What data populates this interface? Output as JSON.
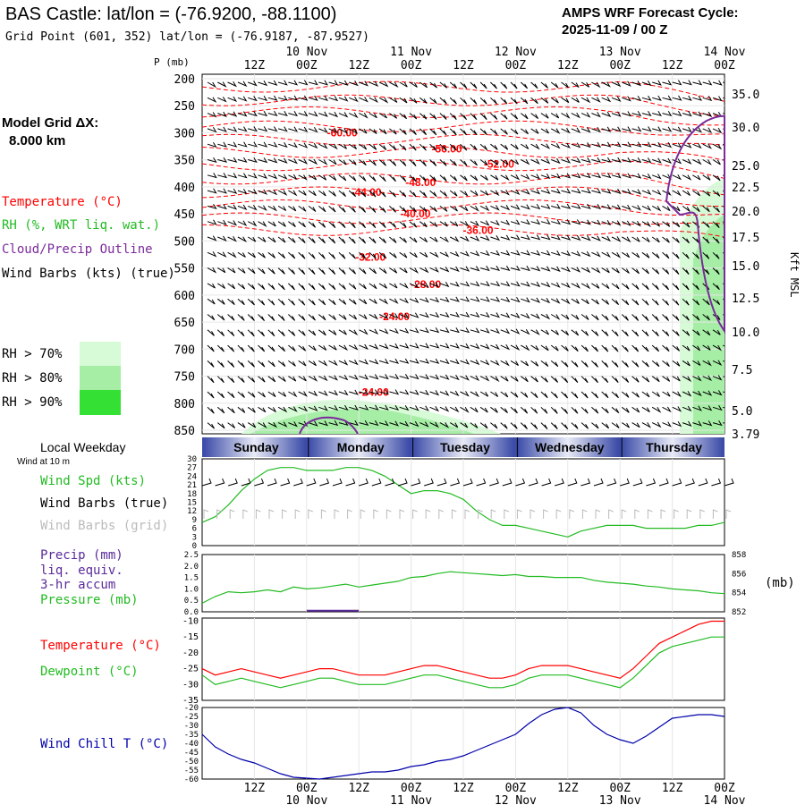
{
  "header": {
    "title": "BAS Castle:  lat/lon = (-76.9200, -88.1100)",
    "grid_point": "Grid Point (601, 352) lat/lon = (-76.9187, -87.9527)",
    "cycle_line1": "AMPS WRF Forecast Cycle:",
    "cycle_line2": "2025-11-09 / 00  Z"
  },
  "time_axis": {
    "top_hours": [
      "12Z",
      "00Z",
      "12Z",
      "00Z",
      "12Z",
      "00Z",
      "12Z",
      "00Z",
      "12Z",
      "00Z"
    ],
    "dates": [
      "10 Nov",
      "11 Nov",
      "12 Nov",
      "13 Nov",
      "14 Nov"
    ]
  },
  "left_panel": {
    "model_grid_label": "Model Grid ΔX:",
    "model_grid_value": "8.000 km",
    "legend_temperature": "Temperature (°C)",
    "legend_rh": "RH (%, WRT liq. wat.)",
    "legend_cloud": "Cloud/Precip Outline",
    "legend_wind": "Wind Barbs (kts) (true)",
    "rh_70": "RH > 70%",
    "rh_80": "RH > 80%",
    "rh_90": "RH > 90%"
  },
  "colors": {
    "temperature": "#ff0000",
    "rh": "#22bb22",
    "cloud": "#7a2a9a",
    "rh70": "#d6fbd6",
    "rh80": "#a6eea6",
    "rh90": "#34e034",
    "wind_chill": "#0000aa",
    "precip": "#5a2a9a"
  },
  "weekday_band": {
    "title": "Local Weekday",
    "days": [
      "Sunday",
      "Monday",
      "Tuesday",
      "Wednesday",
      "Thursday"
    ]
  },
  "panel_labels": {
    "wind_at": "Wind at 10 m",
    "wind_spd": "Wind Spd (kts)",
    "wind_barbs_true": "Wind Barbs (true)",
    "wind_barbs_grid": "Wind Barbs (grid)",
    "precip": "Precip (mm)",
    "precip2": "liq. equiv.",
    "precip3": "3-hr accum",
    "pressure": "Pressure (mb)",
    "pressure_unit": "(mb)",
    "temperature": "Temperature (°C)",
    "dewpoint": "Dewpoint (°C)",
    "wind_chill": "Wind Chill T (°C)"
  },
  "chart_data": [
    {
      "type": "heatmap",
      "ylabel": "P (mb)",
      "ylabel_right": "Kft MSL",
      "pressure_ticks": [
        "200",
        "250",
        "300",
        "350",
        "400",
        "450",
        "500",
        "550",
        "600",
        "650",
        "700",
        "750",
        "800",
        "850"
      ],
      "kft_ticks": [
        "35.0",
        "30.0",
        "25.0",
        "22.5",
        "20.0",
        "17.5",
        "15.0",
        "12.5",
        "10.0",
        "7.5",
        "5.0",
        "3.79"
      ],
      "temperature_contours": [
        {
          "label": "-60.00",
          "t": 1.35,
          "p": 300
        },
        {
          "label": "-56.00",
          "t": 2.35,
          "p": 330
        },
        {
          "label": "-52.00",
          "t": 2.85,
          "p": 358
        },
        {
          "label": "-48.00",
          "t": 2.1,
          "p": 392
        },
        {
          "label": "-44.00",
          "t": 1.58,
          "p": 410
        },
        {
          "label": "-40.00",
          "t": 2.05,
          "p": 450
        },
        {
          "label": "-36.00",
          "t": 2.65,
          "p": 480
        },
        {
          "label": "-32.00",
          "t": 1.62,
          "p": 530
        },
        {
          "label": "-28.00",
          "t": 2.15,
          "p": 580
        },
        {
          "label": "-24.00",
          "t": 1.85,
          "p": 640
        },
        {
          "label": "-24.00",
          "t": 1.65,
          "p": 780
        }
      ]
    },
    {
      "type": "line",
      "name_label": "Wind Spd (kts)",
      "yticks": [
        "30",
        "27",
        "24",
        "21",
        "18",
        "15",
        "12",
        "9",
        "6",
        "3",
        "0"
      ],
      "ylim": [
        0,
        30
      ],
      "x": [
        0,
        3,
        6,
        9,
        12,
        15,
        18,
        21,
        24,
        27,
        30,
        33,
        36,
        39,
        42,
        45,
        48,
        51,
        54,
        57,
        60,
        63,
        66,
        69,
        72,
        75,
        78,
        81,
        84,
        87,
        90,
        93,
        96,
        99,
        102,
        105,
        108,
        111,
        114,
        117,
        120
      ],
      "values": [
        8,
        10,
        14,
        19,
        23,
        26,
        27,
        27,
        26,
        26,
        26,
        27,
        27,
        26,
        24,
        21,
        18,
        19,
        19,
        18,
        16,
        12,
        9,
        7,
        7,
        6,
        5,
        4,
        3,
        5,
        6,
        7,
        7,
        7,
        6,
        6,
        6,
        6,
        7,
        7,
        8
      ]
    },
    {
      "type": "line",
      "yticks_left": [
        "2.5",
        "2.0",
        "1.5",
        "1.0",
        "0.5",
        "0.0"
      ],
      "yticks_right": [
        "858",
        "856",
        "854",
        "852"
      ],
      "ylim_precip": [
        0,
        2.5
      ],
      "ylim_pressure": [
        852,
        858
      ],
      "x": [
        0,
        3,
        6,
        9,
        12,
        15,
        18,
        21,
        24,
        27,
        30,
        33,
        36,
        39,
        42,
        45,
        48,
        51,
        54,
        57,
        60,
        63,
        66,
        69,
        72,
        75,
        78,
        81,
        84,
        87,
        90,
        93,
        96,
        99,
        102,
        105,
        108,
        111,
        114,
        117,
        120
      ],
      "pressure": [
        852.9,
        853.6,
        854.1,
        854.0,
        854.1,
        854.3,
        854.1,
        854.6,
        854.4,
        854.5,
        854.7,
        854.9,
        854.6,
        854.8,
        855.0,
        855.2,
        855.6,
        855.7,
        856.0,
        856.2,
        856.1,
        856.0,
        855.9,
        855.8,
        855.9,
        855.7,
        855.7,
        855.6,
        855.6,
        855.6,
        855.3,
        855.1,
        855.0,
        854.9,
        854.7,
        854.6,
        854.4,
        854.3,
        854.2,
        854.0,
        853.9
      ],
      "precip_x": [
        24,
        36
      ],
      "precip_values": [
        0.05,
        0.05
      ]
    },
    {
      "type": "line",
      "yticks": [
        "-10",
        "-15",
        "-20",
        "-25",
        "-30",
        "-35"
      ],
      "ylim": [
        -35,
        -9
      ],
      "x": [
        0,
        3,
        6,
        9,
        12,
        15,
        18,
        21,
        24,
        27,
        30,
        33,
        36,
        39,
        42,
        45,
        48,
        51,
        54,
        57,
        60,
        63,
        66,
        69,
        72,
        75,
        78,
        81,
        84,
        87,
        90,
        93,
        96,
        99,
        102,
        105,
        108,
        111,
        114,
        117,
        120
      ],
      "series": [
        {
          "name": "Temperature (°C)",
          "values": [
            -25,
            -27,
            -26,
            -25,
            -26,
            -27,
            -28,
            -27,
            -26,
            -25,
            -25,
            -26,
            -27,
            -27,
            -27,
            -26,
            -25,
            -24,
            -24,
            -25,
            -26,
            -27,
            -28,
            -28,
            -27,
            -25,
            -24,
            -24,
            -24,
            -25,
            -26,
            -27,
            -28,
            -25,
            -21,
            -17,
            -15,
            -13,
            -11,
            -10,
            -10
          ]
        },
        {
          "name": "Dewpoint (°C)",
          "values": [
            -27,
            -30,
            -29,
            -28,
            -29,
            -30,
            -31,
            -30,
            -29,
            -28,
            -28,
            -29,
            -30,
            -30,
            -30,
            -29,
            -28,
            -27,
            -27,
            -28,
            -29,
            -30,
            -31,
            -31,
            -30,
            -28,
            -27,
            -27,
            -27,
            -28,
            -29,
            -30,
            -31,
            -28,
            -24,
            -20,
            -18,
            -17,
            -16,
            -15,
            -15
          ]
        }
      ]
    },
    {
      "type": "line",
      "yticks": [
        "-20",
        "-25",
        "-30",
        "-35",
        "-40",
        "-45",
        "-50",
        "-55",
        "-60"
      ],
      "ylim": [
        -60,
        -20
      ],
      "x": [
        0,
        3,
        6,
        9,
        12,
        15,
        18,
        21,
        24,
        27,
        30,
        33,
        36,
        39,
        42,
        45,
        48,
        51,
        54,
        57,
        60,
        63,
        66,
        69,
        72,
        75,
        78,
        81,
        84,
        87,
        90,
        93,
        96,
        99,
        102,
        105,
        108,
        111,
        114,
        117,
        120
      ],
      "series": [
        {
          "name": "Wind Chill T (°C)",
          "values": [
            -35,
            -42,
            -46,
            -49,
            -51,
            -54,
            -57,
            -59,
            -59.5,
            -60,
            -59,
            -58,
            -57,
            -56,
            -56,
            -55,
            -53,
            -52,
            -50,
            -49,
            -47,
            -44,
            -41,
            -38,
            -35,
            -29,
            -24,
            -21,
            -20,
            -23,
            -30,
            -35,
            -38,
            -40,
            -36,
            -31,
            -26,
            -25,
            -24,
            -24,
            -25
          ]
        }
      ]
    }
  ]
}
